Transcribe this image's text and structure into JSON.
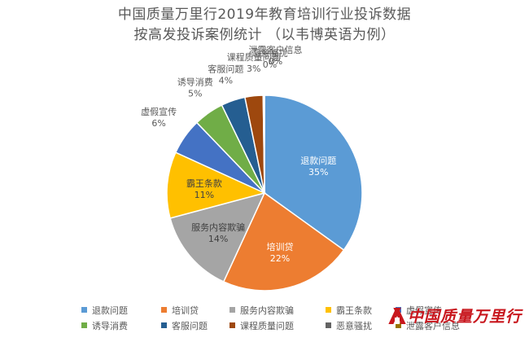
{
  "chart_data": {
    "type": "pie",
    "title": [
      "中国质量万里行2019年教育培训行业投诉数据",
      "按高发投诉案例统计 （以韦博英语为例）"
    ],
    "slices": [
      {
        "label": "退款问题",
        "value": 35,
        "value_label": "35%",
        "color": "#5b9bd5"
      },
      {
        "label": "培训贷",
        "value": 22,
        "value_label": "22%",
        "color": "#ed7d31"
      },
      {
        "label": "服务内容欺骗",
        "value": 14,
        "value_label": "14%",
        "color": "#a5a5a5"
      },
      {
        "label": "霸王条款",
        "value": 11,
        "value_label": "11%",
        "color": "#ffc000"
      },
      {
        "label": "虚假宣传",
        "value": 6,
        "value_label": "6%",
        "color": "#4472c4"
      },
      {
        "label": "诱导消费",
        "value": 5,
        "value_label": "5%",
        "color": "#70ad47"
      },
      {
        "label": "客服问题",
        "value": 4,
        "value_label": "4%",
        "color": "#255e91"
      },
      {
        "label": "课程质量问题",
        "value": 3,
        "value_label": "3%",
        "color": "#9e480e"
      },
      {
        "label": "恶意骚扰",
        "value": 0,
        "value_label": "0%",
        "color": "#636363"
      },
      {
        "label": "泄露客户信息",
        "value": 0,
        "value_label": "0%",
        "color": "#997300"
      }
    ],
    "legend_position": "bottom"
  },
  "watermark": {
    "text": "中国质量万里行",
    "color": "#c8161d"
  }
}
